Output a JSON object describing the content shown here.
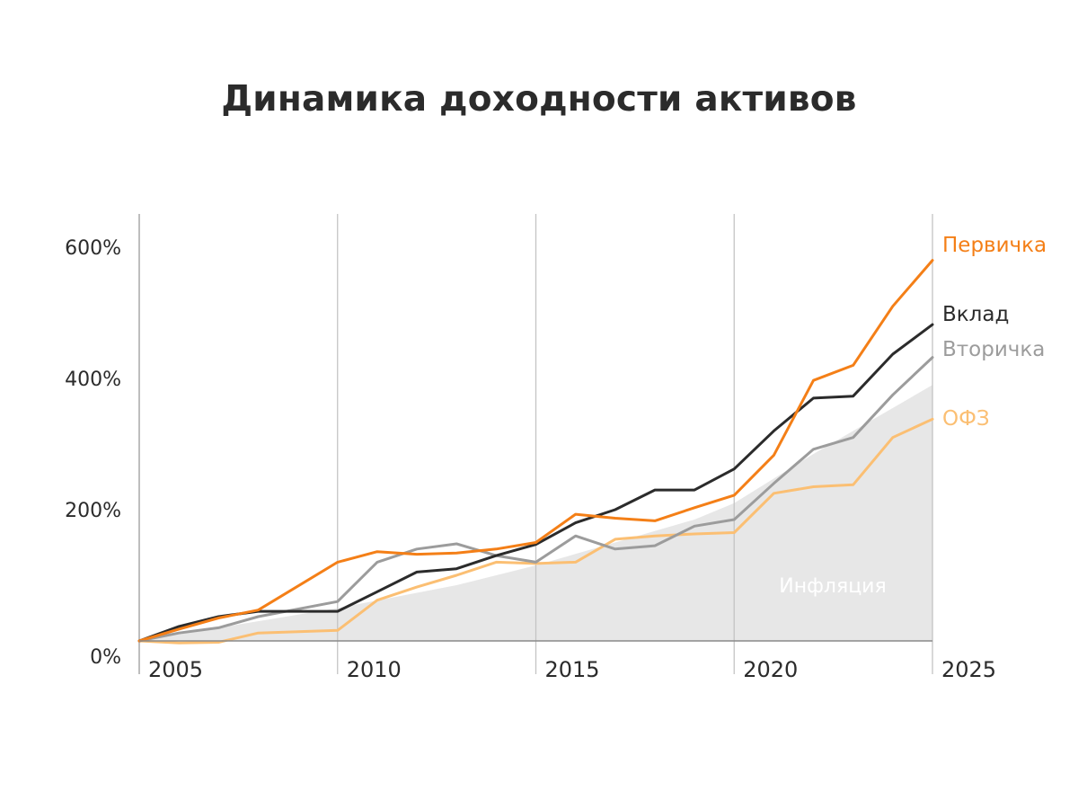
{
  "chart_data": {
    "type": "line",
    "title": "Динамика доходности активов",
    "xlabel": "",
    "ylabel": "",
    "xlim": [
      2005,
      2025
    ],
    "ylim": [
      0,
      600
    ],
    "x_ticks": [
      {
        "value": 2005,
        "label": "2005"
      },
      {
        "value": 2010,
        "label": "2010"
      },
      {
        "value": 2015,
        "label": "2015"
      },
      {
        "value": 2020,
        "label": "2020"
      },
      {
        "value": 2025,
        "label": "2025"
      }
    ],
    "y_ticks": [
      {
        "value": 0,
        "label": "0%"
      },
      {
        "value": 200,
        "label": "200%"
      },
      {
        "value": 400,
        "label": "400%"
      },
      {
        "value": 600,
        "label": "600%"
      }
    ],
    "grid": "vertical",
    "legend": "right, at line ends",
    "area": {
      "name": "Инфляция",
      "color": "#e7e7e7",
      "points": [
        [
          2005,
          0
        ],
        [
          2010,
          50
        ],
        [
          2013,
          85
        ],
        [
          2015,
          115
        ],
        [
          2017,
          150
        ],
        [
          2019,
          185
        ],
        [
          2020,
          210
        ],
        [
          2022,
          285
        ],
        [
          2023,
          320
        ],
        [
          2025,
          390
        ]
      ]
    },
    "series": [
      {
        "name": "Первичка",
        "color": "#f47f17",
        "points": [
          [
            2005,
            0
          ],
          [
            2006,
            18
          ],
          [
            2007,
            35
          ],
          [
            2008,
            47
          ],
          [
            2010,
            120
          ],
          [
            2011,
            136
          ],
          [
            2012,
            132
          ],
          [
            2013,
            134
          ],
          [
            2014,
            140
          ],
          [
            2015,
            150
          ],
          [
            2016,
            193
          ],
          [
            2017,
            187
          ],
          [
            2018,
            183
          ],
          [
            2019,
            203
          ],
          [
            2020,
            222
          ],
          [
            2021,
            283
          ],
          [
            2022,
            397
          ],
          [
            2023,
            420
          ],
          [
            2024,
            510
          ],
          [
            2025,
            580
          ]
        ]
      },
      {
        "name": "Вклад",
        "color": "#2b2b2b",
        "points": [
          [
            2005,
            0
          ],
          [
            2006,
            22
          ],
          [
            2007,
            37
          ],
          [
            2008,
            45
          ],
          [
            2010,
            45
          ],
          [
            2011,
            75
          ],
          [
            2012,
            105
          ],
          [
            2013,
            110
          ],
          [
            2014,
            130
          ],
          [
            2015,
            147
          ],
          [
            2016,
            180
          ],
          [
            2017,
            200
          ],
          [
            2018,
            230
          ],
          [
            2019,
            230
          ],
          [
            2020,
            262
          ],
          [
            2021,
            320
          ],
          [
            2022,
            370
          ],
          [
            2023,
            373
          ],
          [
            2024,
            437
          ],
          [
            2025,
            482
          ]
        ]
      },
      {
        "name": "Вторичка",
        "color": "#9c9c9c",
        "points": [
          [
            2005,
            0
          ],
          [
            2006,
            12
          ],
          [
            2007,
            20
          ],
          [
            2008,
            37
          ],
          [
            2010,
            60
          ],
          [
            2011,
            120
          ],
          [
            2012,
            140
          ],
          [
            2013,
            148
          ],
          [
            2014,
            130
          ],
          [
            2015,
            120
          ],
          [
            2016,
            160
          ],
          [
            2017,
            140
          ],
          [
            2018,
            145
          ],
          [
            2019,
            175
          ],
          [
            2020,
            185
          ],
          [
            2021,
            240
          ],
          [
            2022,
            292
          ],
          [
            2023,
            310
          ],
          [
            2024,
            375
          ],
          [
            2025,
            432
          ]
        ]
      },
      {
        "name": "ОФЗ",
        "color": "#fbbf73",
        "points": [
          [
            2005,
            0
          ],
          [
            2006,
            -3
          ],
          [
            2007,
            -2
          ],
          [
            2008,
            12
          ],
          [
            2010,
            16
          ],
          [
            2011,
            62
          ],
          [
            2012,
            82
          ],
          [
            2013,
            100
          ],
          [
            2014,
            120
          ],
          [
            2015,
            118
          ],
          [
            2016,
            120
          ],
          [
            2017,
            155
          ],
          [
            2018,
            160
          ],
          [
            2019,
            163
          ],
          [
            2020,
            165
          ],
          [
            2021,
            225
          ],
          [
            2022,
            235
          ],
          [
            2023,
            238
          ],
          [
            2024,
            310
          ],
          [
            2025,
            338
          ]
        ]
      }
    ]
  }
}
